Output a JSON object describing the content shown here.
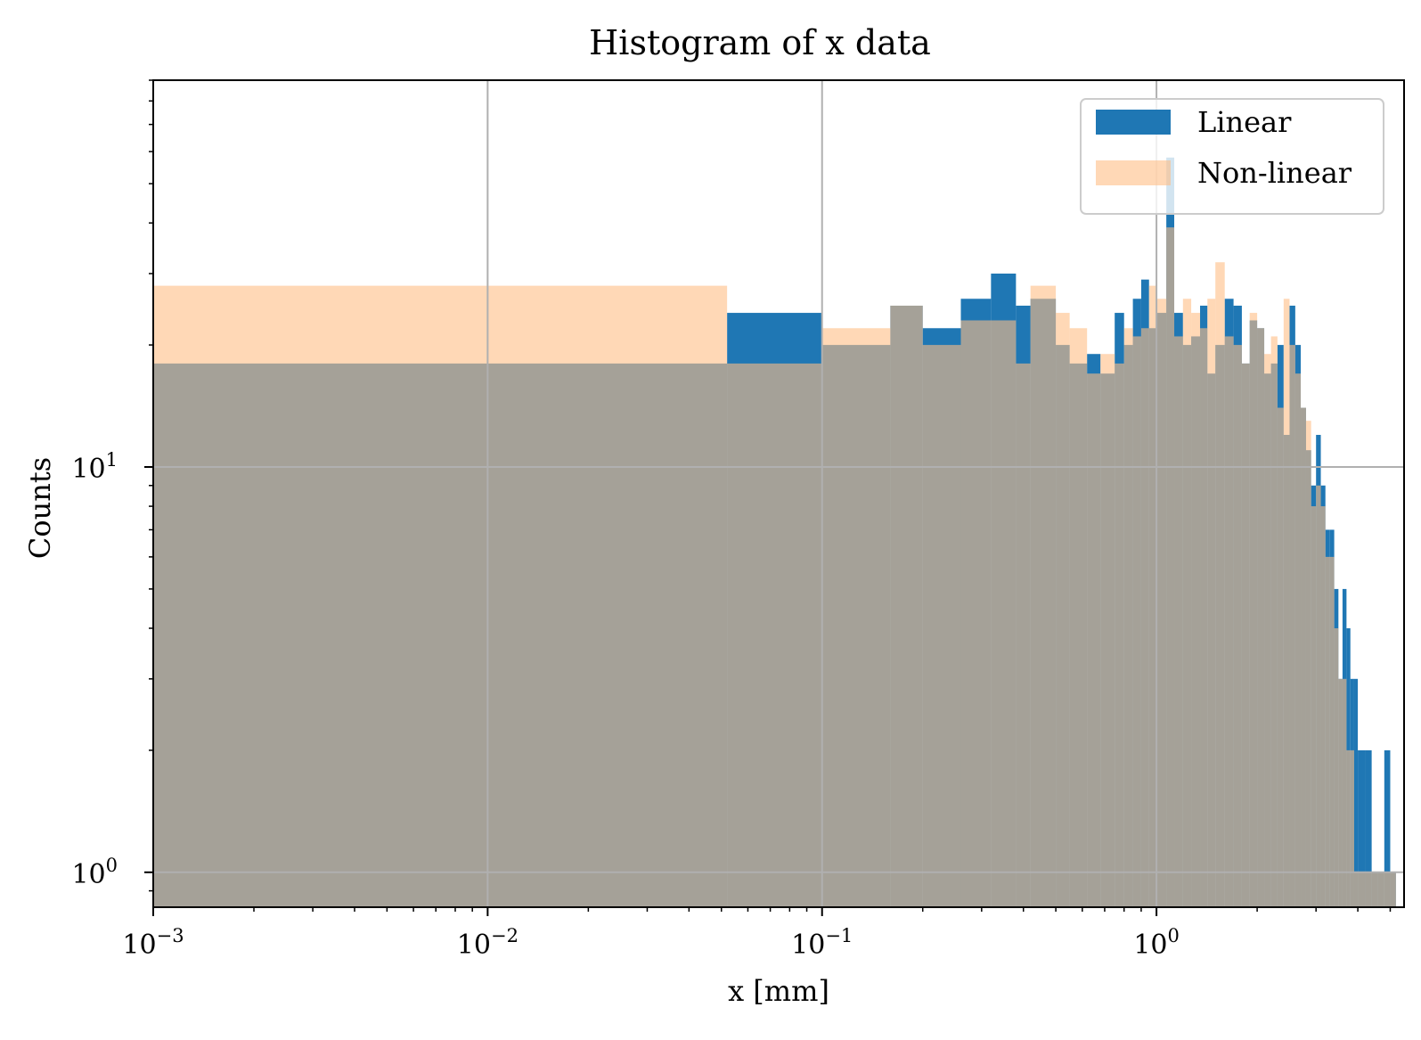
{
  "chart_data": {
    "type": "histogram",
    "title": "Histogram of x data",
    "xlabel": "x [mm]",
    "ylabel": "Counts",
    "xscale": "log",
    "yscale": "log",
    "xlim": [
      0.001,
      5.5
    ],
    "ylim": [
      0.82,
      90
    ],
    "grid": true,
    "legend_position": "top-right",
    "x_ticks": [
      {
        "value": 0.001,
        "base": "10",
        "exp": "−3"
      },
      {
        "value": 0.01,
        "base": "10",
        "exp": "−2"
      },
      {
        "value": 0.1,
        "base": "10",
        "exp": "−1"
      },
      {
        "value": 1,
        "base": "10",
        "exp": "0"
      }
    ],
    "y_ticks": [
      {
        "value": 1,
        "base": "10",
        "exp": "0"
      },
      {
        "value": 10,
        "base": "10",
        "exp": "1"
      }
    ],
    "series": [
      {
        "name": "Linear",
        "color": "#1f77b4",
        "opacity": 1.0,
        "edges": [
          0.001,
          0.052,
          0.1,
          0.16,
          0.2,
          0.26,
          0.32,
          0.38,
          0.42,
          0.5,
          0.55,
          0.62,
          0.68,
          0.75,
          0.8,
          0.85,
          0.9,
          0.95,
          1.0,
          1.07,
          1.13,
          1.2,
          1.27,
          1.35,
          1.42,
          1.5,
          1.6,
          1.7,
          1.8,
          1.9,
          2.0,
          2.1,
          2.2,
          2.3,
          2.4,
          2.5,
          2.6,
          2.7,
          2.8,
          2.9,
          3.0,
          3.1,
          3.2,
          3.3,
          3.4,
          3.5,
          3.6,
          3.7,
          3.8,
          3.9,
          4.0,
          4.2,
          4.4,
          4.6,
          4.8,
          5.0,
          5.2
        ],
        "values": [
          18,
          24,
          20,
          25,
          22,
          26,
          30,
          25,
          26,
          20,
          18,
          19,
          17,
          24,
          20,
          26,
          29,
          22,
          24,
          58,
          24,
          20,
          21,
          25,
          17,
          20,
          26,
          25,
          18,
          23,
          22,
          17,
          18,
          20,
          12,
          25,
          20,
          14,
          11,
          9,
          12,
          9,
          7,
          7,
          5,
          3,
          5,
          4,
          3,
          3,
          2,
          2,
          1,
          1,
          2,
          1
        ],
        "legend_y": 137
      },
      {
        "name": "Non-linear",
        "color": "#ffbe86",
        "opacity": 0.6,
        "edges": [
          0.001,
          0.052,
          0.1,
          0.16,
          0.2,
          0.26,
          0.32,
          0.38,
          0.42,
          0.5,
          0.55,
          0.62,
          0.68,
          0.75,
          0.8,
          0.85,
          0.9,
          0.95,
          1.0,
          1.07,
          1.13,
          1.2,
          1.27,
          1.35,
          1.42,
          1.5,
          1.6,
          1.7,
          1.8,
          1.9,
          2.0,
          2.1,
          2.2,
          2.3,
          2.4,
          2.5,
          2.6,
          2.7,
          2.8,
          2.9,
          3.0,
          3.1,
          3.2,
          3.3,
          3.4,
          3.5,
          3.6,
          3.7,
          3.8,
          3.9,
          4.0,
          4.2,
          4.4,
          4.6,
          4.8,
          5.0,
          5.2
        ],
        "values": [
          28,
          18,
          22,
          25,
          20,
          23,
          23,
          18,
          28,
          24,
          22,
          17,
          19,
          18,
          22,
          21,
          22,
          28,
          26,
          39,
          21,
          26,
          24,
          22,
          26,
          32,
          21,
          20,
          18,
          24,
          22,
          19,
          21,
          14,
          26,
          20,
          17,
          14,
          13,
          8,
          9,
          8,
          6,
          6,
          4,
          3,
          3,
          2,
          2,
          1,
          1,
          1,
          1,
          1,
          1,
          1
        ],
        "legend_y": 194
      }
    ]
  }
}
